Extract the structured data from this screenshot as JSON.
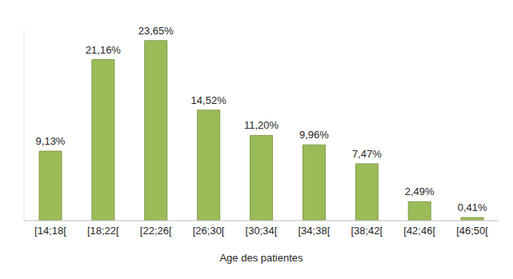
{
  "chart_data": {
    "type": "bar",
    "x_label": "Age des patientes",
    "categories": [
      "[14;18[",
      "[18;22[",
      "[22;26[",
      "[26;30[",
      "[30;34[",
      "[34;38[",
      "[38;42[",
      "[42;46[",
      "[46;50["
    ],
    "values": [
      9.13,
      21.16,
      23.65,
      14.52,
      11.2,
      9.96,
      7.47,
      2.49,
      0.41
    ],
    "value_labels": [
      "9,13%",
      "21,16%",
      "23,65%",
      "14,52%",
      "11,20%",
      "9,96%",
      "7,47%",
      "2,49%",
      "0,41%"
    ],
    "color": "#9bbb59",
    "ylim": [
      0,
      25
    ],
    "grid": false,
    "data_labels": true,
    "tick_labels": "x"
  }
}
